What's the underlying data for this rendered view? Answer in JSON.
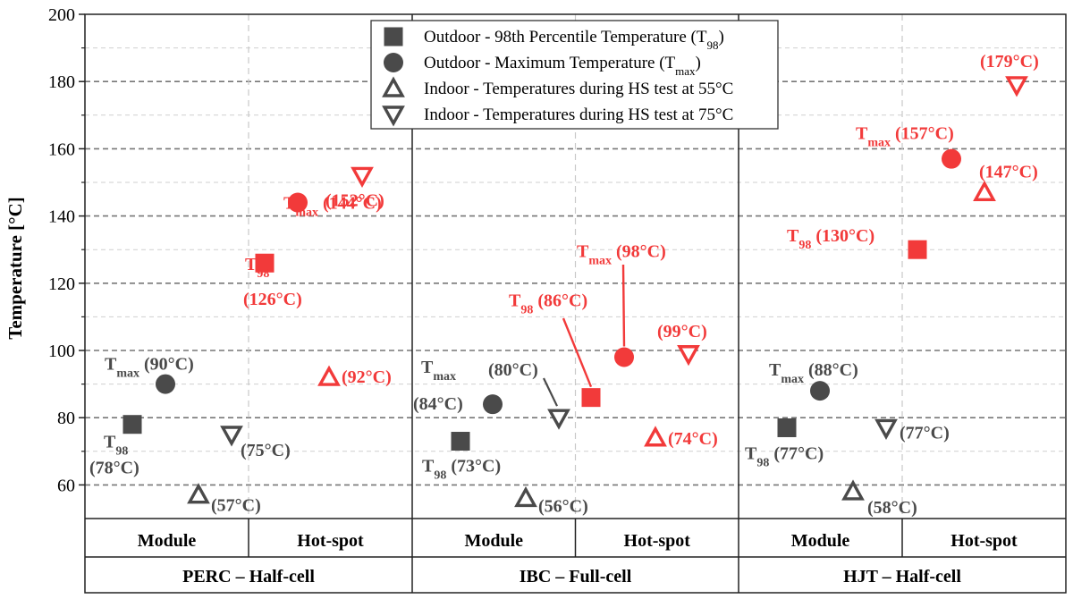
{
  "chart_data": {
    "type": "scatter",
    "ylabel": "Temperature [°C]",
    "ylim": [
      50,
      200
    ],
    "yticks": [
      60,
      80,
      100,
      120,
      140,
      160,
      180,
      200
    ],
    "grid": true,
    "legend_position": "top-center",
    "colors": {
      "hot_spot": "#f23a3a",
      "module": "#4a4a4a"
    },
    "legend": [
      {
        "marker": "square",
        "text": "Outdoor - 98th Percentile Temperature (T",
        "sub": "98",
        "tail": ")"
      },
      {
        "marker": "circle",
        "text": "Outdoor - Maximum Temperature (T",
        "sub": "max",
        "tail": ")"
      },
      {
        "marker": "triangle-up",
        "text": "Indoor - Temperatures during HS test at 55°C",
        "sub": "",
        "tail": ""
      },
      {
        "marker": "triangle-down",
        "text": "Indoor - Temperatures during HS test at 75°C",
        "sub": "",
        "tail": ""
      }
    ],
    "x_categories": [
      "Module",
      "Hot-spot",
      "Module",
      "Hot-spot",
      "Module",
      "Hot-spot"
    ],
    "groups": [
      "PERC – Half-cell",
      "IBC – Full-cell",
      "HJT – Half-cell"
    ],
    "points": [
      {
        "group": 0,
        "sub": "module",
        "series": "T98",
        "marker": "square",
        "value": 78,
        "label": "(78°C)",
        "prefix": "T98"
      },
      {
        "group": 0,
        "sub": "module",
        "series": "Tmax",
        "marker": "circle",
        "value": 90,
        "label": "(90°C)",
        "prefix": "Tmax"
      },
      {
        "group": 0,
        "sub": "module",
        "series": "HS55",
        "marker": "triangle-up",
        "value": 57,
        "label": "(57°C)",
        "prefix": ""
      },
      {
        "group": 0,
        "sub": "module",
        "series": "HS75",
        "marker": "triangle-down",
        "value": 75,
        "label": "(75°C)",
        "prefix": ""
      },
      {
        "group": 0,
        "sub": "hot-spot",
        "series": "T98",
        "marker": "square",
        "value": 126,
        "label": "(126°C)",
        "prefix": "T98"
      },
      {
        "group": 0,
        "sub": "hot-spot",
        "series": "Tmax",
        "marker": "circle",
        "value": 144,
        "label": "(144°C)",
        "prefix": "Tmax"
      },
      {
        "group": 0,
        "sub": "hot-spot",
        "series": "HS55",
        "marker": "triangle-up",
        "value": 92,
        "label": "(92°C)",
        "prefix": ""
      },
      {
        "group": 0,
        "sub": "hot-spot",
        "series": "HS75",
        "marker": "triangle-down",
        "value": 152,
        "label": "(152°C)",
        "prefix": ""
      },
      {
        "group": 1,
        "sub": "module",
        "series": "T98",
        "marker": "square",
        "value": 73,
        "label": "(73°C)",
        "prefix": "T98"
      },
      {
        "group": 1,
        "sub": "module",
        "series": "Tmax",
        "marker": "circle",
        "value": 84,
        "label": "(84°C)",
        "prefix": "Tmax"
      },
      {
        "group": 1,
        "sub": "module",
        "series": "HS55",
        "marker": "triangle-up",
        "value": 56,
        "label": "(56°C)",
        "prefix": ""
      },
      {
        "group": 1,
        "sub": "module",
        "series": "HS75",
        "marker": "triangle-down",
        "value": 80,
        "label": "(80°C)",
        "prefix": ""
      },
      {
        "group": 1,
        "sub": "hot-spot",
        "series": "T98",
        "marker": "square",
        "value": 86,
        "label": "(86°C)",
        "prefix": "T98"
      },
      {
        "group": 1,
        "sub": "hot-spot",
        "series": "Tmax",
        "marker": "circle",
        "value": 98,
        "label": "(98°C)",
        "prefix": "Tmax"
      },
      {
        "group": 1,
        "sub": "hot-spot",
        "series": "HS55",
        "marker": "triangle-up",
        "value": 74,
        "label": "(74°C)",
        "prefix": ""
      },
      {
        "group": 1,
        "sub": "hot-spot",
        "series": "HS75",
        "marker": "triangle-down",
        "value": 99,
        "label": "(99°C)",
        "prefix": ""
      },
      {
        "group": 2,
        "sub": "module",
        "series": "T98",
        "marker": "square",
        "value": 77,
        "label": "(77°C)",
        "prefix": "T98"
      },
      {
        "group": 2,
        "sub": "module",
        "series": "Tmax",
        "marker": "circle",
        "value": 88,
        "label": "(88°C)",
        "prefix": "Tmax"
      },
      {
        "group": 2,
        "sub": "module",
        "series": "HS55",
        "marker": "triangle-up",
        "value": 58,
        "label": "(58°C)",
        "prefix": ""
      },
      {
        "group": 2,
        "sub": "module",
        "series": "HS75",
        "marker": "triangle-down",
        "value": 77,
        "label": "(77°C)",
        "prefix": ""
      },
      {
        "group": 2,
        "sub": "hot-spot",
        "series": "T98",
        "marker": "square",
        "value": 130,
        "label": "(130°C)",
        "prefix": "T98"
      },
      {
        "group": 2,
        "sub": "hot-spot",
        "series": "Tmax",
        "marker": "circle",
        "value": 157,
        "label": "(157°C)",
        "prefix": "Tmax"
      },
      {
        "group": 2,
        "sub": "hot-spot",
        "series": "HS55",
        "marker": "triangle-up",
        "value": 147,
        "label": "(147°C)",
        "prefix": ""
      },
      {
        "group": 2,
        "sub": "hot-spot",
        "series": "HS75",
        "marker": "triangle-down",
        "value": 179,
        "label": "(179°C)",
        "prefix": ""
      }
    ]
  }
}
